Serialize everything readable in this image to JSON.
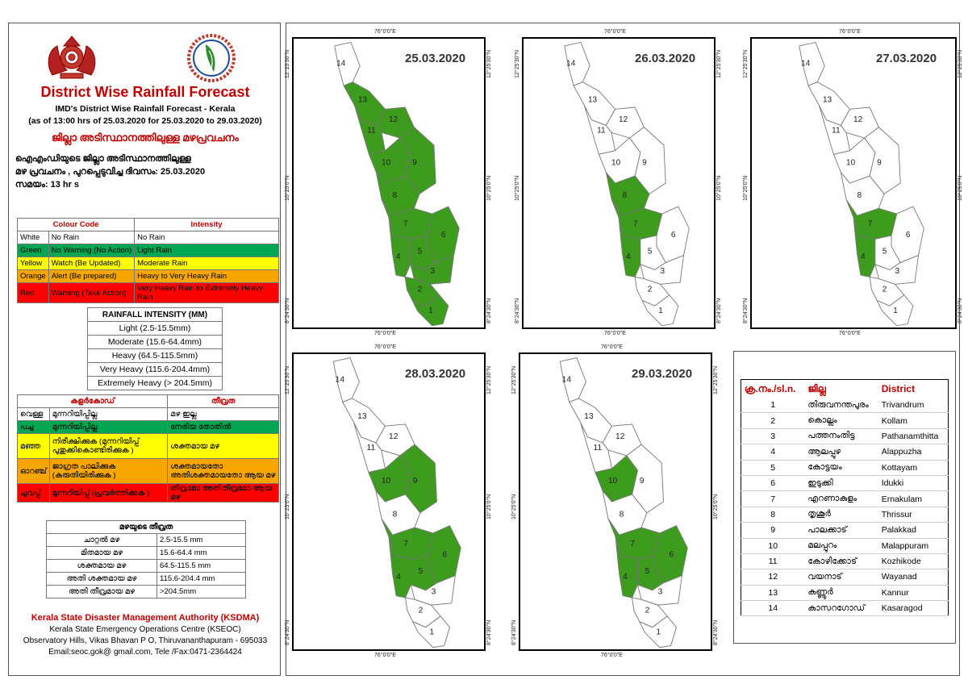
{
  "header": {
    "title": "District Wise Rainfall Forecast",
    "subtitle1": "IMD's District Wise Rainfall Forecast - Kerala",
    "subtitle2": "(as of 13:00 hrs of 25.03.2020  for 25.03.2020  to 29.03.2020)",
    "title_ml": "ജില്ലാ അടിസ്ഥാനത്തിലുള്ള മഴപ്രവചനം",
    "info_line1": "ഐഎംഡിയുടെ ജില്ലാ     അടിസ്ഥാനത്തിലുള്ള",
    "info_line2": "മഴ പ്രവചനം , പുറപ്പെടുവിച്ച      ദിവസം: 25.03.2020",
    "info_line3": "സമയം: 13  hr s"
  },
  "colour_legend": {
    "headers": [
      "Colour Code",
      "Intensity"
    ],
    "rows": [
      {
        "colour": "White",
        "action": "No Rain",
        "intensity": "No Rain",
        "bg": "#ffffff",
        "fg": "#000000"
      },
      {
        "colour": "Green",
        "action": "No Warning (No Action)",
        "intensity": "Light Rain",
        "bg": "#00a651",
        "fg": "#000000"
      },
      {
        "colour": "Yellow",
        "action": "Watch (Be Updated)",
        "intensity": "Moderate Rain",
        "bg": "#ffff00",
        "fg": "#000000"
      },
      {
        "colour": "Orange",
        "action": "Alert (Be prepared)",
        "intensity": "Heavy to Very Heavy Rain",
        "bg": "#f7a600",
        "fg": "#000000"
      },
      {
        "colour": "Red",
        "action": "Warning (Take Action)",
        "intensity": "Very Heavy Rain to Extremely Heavy Rain",
        "bg": "#ff0000",
        "fg": "#000000"
      }
    ]
  },
  "rainfall_intensity": {
    "title": "RAINFALL INTENSITY (MM)",
    "rows": [
      "Light (2.5-15.5mm)",
      "Moderate (15.6-64.4mm)",
      "Heavy (64.5-115.5mm)",
      "Very Heavy (115.6-204.4mm)",
      "Extremely Heavy (> 204.5mm)"
    ]
  },
  "ml_legend": {
    "headers": [
      "കളർകോഡ്",
      "തീവ്രത"
    ],
    "rows": [
      {
        "colour": "വെള്ള",
        "action": "മുന്നറിയിപ്പില്ല",
        "intensity": "മഴ ഇല്ല",
        "bg": "#ffffff"
      },
      {
        "colour": "പച്ച",
        "action": "മുന്നറിയിപ്പില്ല",
        "intensity": "നേരിയ തോതിൽ",
        "bg": "#00a651"
      },
      {
        "colour": "മഞ്ഞ",
        "action": "നിരീക്ഷിക്കുക (മുന്നറിയിപ്പ് പുതുക്കികൊണ്ടിരിക്കുക )",
        "intensity": "ശക്തമായ മഴ",
        "bg": "#ffff00"
      },
      {
        "colour": "ഓറഞ്ച്",
        "action": "ജാഗ്രത പാലിക്കുക (കരുതിയിരിക്കുക )",
        "intensity": "ശക്തമായതോ അതിശക്തമായതോ ആയ മഴ",
        "bg": "#f7a600"
      },
      {
        "colour": "ചുവപ്പ്",
        "action": "മുന്നറിയിപ്പ് (പ്രവർത്തിക്കുക )",
        "intensity": "തീവ്രമോ അതിതീവ്രമോ ആയ മഴ",
        "bg": "#ff0000"
      }
    ]
  },
  "ml_intensity": {
    "title": "മഴയുടെ തീവ്രത",
    "rows": [
      {
        "label": "ചാറ്റൽ മഴ",
        "value": "2.5-15.5 mm"
      },
      {
        "label": "മിതമായ മഴ",
        "value": "15.6-64.4 mm"
      },
      {
        "label": "ശക്തമായ മഴ",
        "value": "64.5-115.5 mm"
      },
      {
        "label": "അതി ശക്തമായ മഴ",
        "value": "115.6-204.4 mm"
      },
      {
        "label": "അതി തീവ്രമായ മഴ",
        "value": ">204.5mm"
      }
    ]
  },
  "footer": {
    "org": "Kerala State Disaster Management Authority (KSDMA)",
    "line1": "Kerala State Emergency Operations Centre (KSEOC)",
    "line2": "Observatory Hills, Vikas Bhavan P O, Thiruvananthapuram - 695033",
    "line3": "Email:seoc.gok@ gmail.com, Tele /Fax:0471-2364424"
  },
  "coords": {
    "lon": "76°0'0\"E",
    "lat_top": "12°25'30\"N",
    "lat_mid": "10°25'0\"N",
    "lat_bot": "8°24'30\"N"
  },
  "maps": [
    {
      "date": "25.03.2020",
      "green": [
        1,
        2,
        3,
        4,
        5,
        6,
        7,
        8,
        9,
        10,
        11,
        12,
        13
      ]
    },
    {
      "date": "26.03.2020",
      "green": [
        4,
        7,
        8
      ]
    },
    {
      "date": "27.03.2020",
      "green": [
        4,
        7
      ]
    },
    {
      "date": "28.03.2020",
      "green": [
        4,
        5,
        6,
        7,
        9,
        10
      ]
    },
    {
      "date": "29.03.2020",
      "green": [
        4,
        5,
        6,
        7,
        10
      ]
    }
  ],
  "colors": {
    "green": "#3d9c1e",
    "white": "#ffffff",
    "accent_red": "#c00000"
  },
  "district_table": {
    "headers": [
      "ക്ര.നം./sl.n.",
      "ജില്ല",
      "District"
    ],
    "rows": [
      {
        "no": "1",
        "ml": "തിരുവനന്തപുരം",
        "en": "Trivandrum"
      },
      {
        "no": "2",
        "ml": "കൊല്ലം",
        "en": "Kollam"
      },
      {
        "no": "3",
        "ml": "പത്തനംതിട്ട",
        "en": "Pathanamthitta"
      },
      {
        "no": "4",
        "ml": "ആലപ്പുഴ",
        "en": "Alappuzha"
      },
      {
        "no": "5",
        "ml": "കോട്ടയം",
        "en": "Kottayam"
      },
      {
        "no": "6",
        "ml": "ഇടുക്കി",
        "en": "Idukki"
      },
      {
        "no": "7",
        "ml": "എറണാകുളം",
        "en": "Ernakulam"
      },
      {
        "no": "8",
        "ml": "തൃശൂർ",
        "en": "Thrissur"
      },
      {
        "no": "9",
        "ml": "പാലക്കാട്",
        "en": "Palakkad"
      },
      {
        "no": "10",
        "ml": "മലപ്പുറം",
        "en": "Malappuram"
      },
      {
        "no": "11",
        "ml": "കോഴിക്കോട്",
        "en": "Kozhikode"
      },
      {
        "no": "12",
        "ml": "വയനാട്",
        "en": "Wayanad"
      },
      {
        "no": "13",
        "ml": "കണ്ണൂർ",
        "en": "Kannur"
      },
      {
        "no": "14",
        "ml": "കാസറഗോഡ്",
        "en": "Kasaragod"
      }
    ]
  }
}
